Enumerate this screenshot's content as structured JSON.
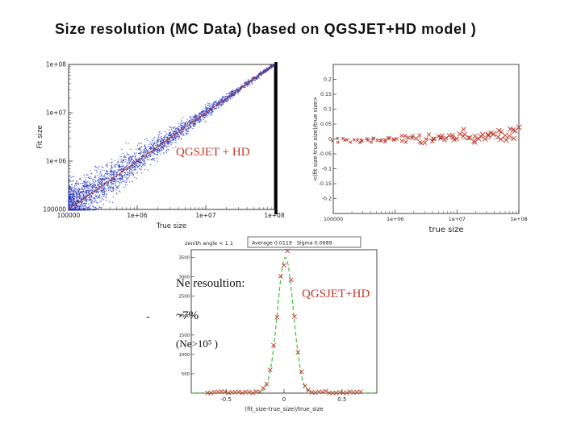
{
  "slide": {
    "title": "Size resolution (MC Data) (based on QGSJET+HD model )"
  },
  "colors": {
    "red": "#c0392b",
    "blue": "#2233bb",
    "green": "#44bb44",
    "axis": "#333333",
    "text": "#222222"
  },
  "overlays": {
    "chart1_model_label": "QGSJET + HD",
    "chart3_model_label": "QGSJET+HD",
    "ne_title": "Ne resoultion:",
    "ne_value": "~7%",
    "ne_cut": "(Ne>10⁵ )",
    "dash": "-"
  },
  "chart_data": [
    {
      "id": "fit-size-vs-true-size",
      "type": "scatter",
      "xlabel": "True size",
      "ylabel": "Fit size",
      "x_scale": "log",
      "y_scale": "log",
      "x_ticks": [
        "100000",
        "1e+06",
        "1e+07",
        "1e+08"
      ],
      "x_tick_log10": [
        5,
        6,
        7,
        8
      ],
      "y_ticks": [
        "1e+08",
        "1e+07",
        "1e+06",
        "100000"
      ],
      "y_tick_log10": [
        8,
        7,
        6,
        5
      ],
      "xlim_log10": [
        5,
        8
      ],
      "ylim_log10": [
        5,
        8
      ],
      "series": [
        {
          "name": "MC events",
          "marker": "dot",
          "color": "#2233bb",
          "n_points": 3000,
          "relation": "fit size tracks true size along unity diagonal",
          "scatter_low_log10": 0.26,
          "scatter_high_log10": 0.018
        },
        {
          "name": "unity line",
          "marker": "line",
          "color": "#c0392b",
          "from_log10": [
            5,
            5
          ],
          "to_log10": [
            8,
            8
          ]
        }
      ]
    },
    {
      "id": "mean-relative-difference-vs-true-size",
      "type": "scatter",
      "xlabel": "true size",
      "ylabel": "<(fit size-true size)/true size>",
      "x_scale": "log",
      "x_ticks": [
        "100000",
        "1e+06",
        "1e+07",
        "1e+08"
      ],
      "x_tick_log10": [
        5,
        6,
        7,
        8
      ],
      "y_ticks": [
        "0.2",
        "0.15",
        "0.1",
        "0.05",
        "0",
        "-0.05",
        "-0.1",
        "-0.15",
        "-0.2"
      ],
      "y_tick_values": [
        0.2,
        0.15,
        0.1,
        0.05,
        0,
        -0.05,
        -0.1,
        -0.15,
        -0.2
      ],
      "ylim": [
        -0.25,
        0.25
      ],
      "zero_line": true,
      "marker": "x",
      "marker_color": "#c0392b",
      "n_points": 85,
      "bias_low": -0.004,
      "bias_high": 0.022,
      "jitter_low": 0.004,
      "jitter_high": 0.013
    },
    {
      "id": "ne-resolution-distribution",
      "type": "line",
      "header_left": "zenith angle < 1.1",
      "header_right": "Average 0.0119   Sigma 0.0689",
      "xlabel": "(fit_size-true_size)/true_size",
      "x_ticks": [
        "-0.5",
        "0",
        "0.5"
      ],
      "x_tick_values": [
        -0.5,
        0,
        0.5
      ],
      "y_ticks": [
        "500",
        "1000",
        "1500",
        "2000",
        "2500",
        "3000",
        "3500"
      ],
      "y_tick_values": [
        500,
        1000,
        1500,
        2000,
        2500,
        3000,
        3500
      ],
      "xlim": [
        -0.8,
        0.8
      ],
      "ylim": [
        0,
        3700
      ],
      "gaussian_fit": {
        "mean": 0.0119,
        "sigma": 0.0689,
        "amplitude": 3500,
        "color": "#44bb44",
        "style": "dashed"
      },
      "data_marker": {
        "marker": "x",
        "color": "#c0392b",
        "bin_width": 0.03
      }
    }
  ]
}
